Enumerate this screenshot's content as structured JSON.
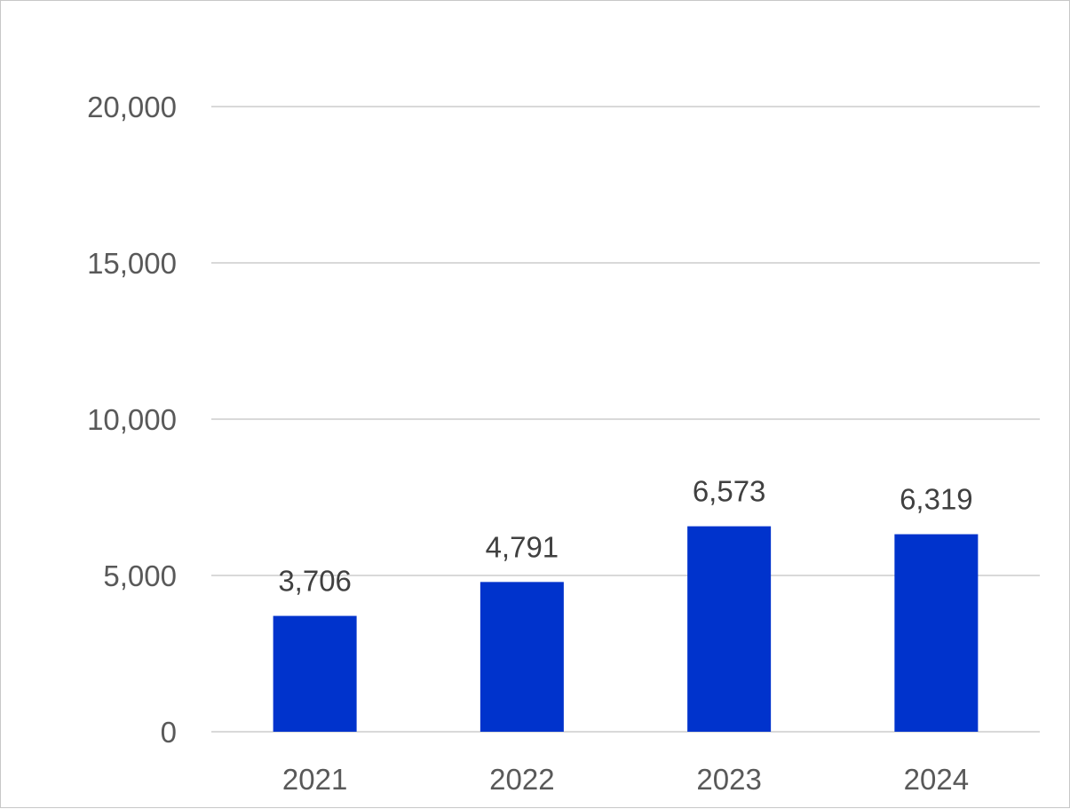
{
  "chart_data": {
    "type": "bar",
    "title": "",
    "xlabel": "",
    "ylabel": "",
    "categories": [
      "2021",
      "2022",
      "2023",
      "2024"
    ],
    "values": [
      3706,
      4791,
      6573,
      6319
    ],
    "value_labels": [
      "3,706",
      "4,791",
      "6,573",
      "6,319"
    ],
    "ylim": [
      0,
      20000
    ],
    "yticks": [
      0,
      5000,
      10000,
      15000,
      20000
    ],
    "ytick_labels": [
      "0",
      "5,000",
      "10,000",
      "15,000",
      "20,000"
    ],
    "grid": true,
    "legend": "none",
    "bar_color": "#0033CC",
    "grid_color": "#D9D9D9"
  }
}
